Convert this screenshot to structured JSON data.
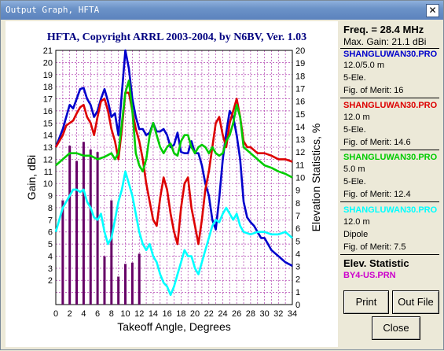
{
  "window": {
    "title": "Output Graph, HFTA",
    "close_glyph": "✕"
  },
  "chart_data": {
    "type": "line",
    "title": "HFTA, Copyright ARRL 2003-2004, by N6BV, Ver. 1.03",
    "xlabel": "Takeoff Angle, Degrees",
    "ylabel": "Gain, dBi",
    "y2label": "Elevation Statistics, %",
    "xlim": [
      0,
      34
    ],
    "ylim": [
      0,
      21
    ],
    "y2lim": [
      0,
      20
    ],
    "grid": true,
    "xticks": [
      0,
      2,
      4,
      6,
      8,
      10,
      12,
      14,
      16,
      18,
      20,
      22,
      24,
      26,
      28,
      30,
      32,
      34
    ],
    "yticks": [
      2,
      3,
      4,
      5,
      6,
      7,
      8,
      9,
      10,
      11,
      12,
      13,
      14,
      15,
      16,
      17,
      18,
      19,
      20,
      21
    ],
    "y2ticks": [
      0,
      1,
      2,
      3,
      4,
      5,
      6,
      7,
      8,
      9,
      10,
      11,
      12,
      13,
      14,
      15,
      16,
      17,
      18,
      19,
      20
    ],
    "series": [
      {
        "name": "SHANGLUWAN30.PRO",
        "color": "#0000cc",
        "x": [
          0,
          1,
          1.5,
          2,
          2.5,
          3,
          3.5,
          4,
          4.5,
          5,
          5.5,
          6,
          6.5,
          7,
          7.5,
          8,
          8.5,
          9,
          9.5,
          10,
          10.5,
          11,
          11.5,
          12,
          12.5,
          13,
          13.5,
          14,
          14.5,
          15,
          15.5,
          16,
          16.5,
          17,
          17.5,
          18,
          18.5,
          19,
          19.5,
          20,
          20.5,
          21,
          21.5,
          22,
          22.5,
          23,
          23.5,
          24,
          24.5,
          25,
          25.5,
          26,
          26.5,
          27,
          27.5,
          28,
          28.5,
          29,
          29.5,
          30,
          31,
          32,
          33,
          34
        ],
        "y": [
          13,
          14.5,
          15.5,
          16.5,
          16.2,
          17,
          17.8,
          17.9,
          17,
          16.5,
          15.5,
          16,
          17,
          17.8,
          16.8,
          15.5,
          15.8,
          14,
          17.5,
          21,
          19.5,
          17,
          15.5,
          14.5,
          14.5,
          14,
          14.2,
          15,
          14.3,
          14.3,
          14.5,
          14,
          13,
          13.2,
          14.2,
          12.6,
          12.5,
          12.5,
          13.5,
          12.5,
          12.5,
          11.5,
          10,
          9,
          7,
          6.2,
          8.8,
          12,
          14.2,
          16,
          15.5,
          14,
          12,
          8.5,
          7.2,
          6.8,
          6.5,
          6,
          5.5,
          5.5,
          4.5,
          4,
          3.5,
          3.2
        ]
      },
      {
        "name": "SHANGLUWAN30.PRO",
        "color": "#dd0000",
        "x": [
          0,
          1,
          1.5,
          2,
          2.5,
          3,
          3.5,
          4,
          4.5,
          5,
          5.5,
          6,
          6.5,
          7,
          7.5,
          8,
          8.5,
          9,
          9.5,
          10,
          10.5,
          11,
          11.5,
          12,
          12.5,
          13,
          13.5,
          14,
          14.5,
          15,
          15.5,
          16,
          16.5,
          17,
          17.5,
          18,
          18.5,
          19,
          19.5,
          20,
          20.5,
          21,
          21.5,
          22,
          22.5,
          23,
          23.5,
          24,
          24.5,
          25,
          25.5,
          26,
          26.5,
          27,
          27.5,
          28,
          29,
          30,
          31,
          32,
          33,
          34
        ],
        "y": [
          13,
          14,
          14.8,
          15,
          15.2,
          15.8,
          16.3,
          16.5,
          15.5,
          15,
          14,
          15.5,
          16.8,
          17,
          16,
          14.5,
          13.5,
          12,
          14.5,
          17.5,
          17.5,
          16,
          14.5,
          13.5,
          12,
          10,
          8.5,
          7,
          6.5,
          8.8,
          10.5,
          9.5,
          7.5,
          6,
          5,
          8,
          10,
          10.5,
          8,
          6.5,
          5,
          7,
          9.5,
          11,
          13,
          15,
          15.5,
          14,
          13,
          15,
          16,
          17,
          15.5,
          13.5,
          13,
          13,
          12.5,
          12.5,
          12.3,
          12,
          12,
          11.8
        ]
      },
      {
        "name": "SHANGLUWAN30.PRO",
        "color": "#00cc00",
        "x": [
          0,
          1,
          2,
          3,
          4,
          5,
          6,
          7,
          8,
          8.5,
          9,
          9.5,
          10,
          10.5,
          11,
          11.5,
          12,
          12.5,
          13,
          13.5,
          14,
          14.5,
          15,
          15.5,
          16,
          16.5,
          17,
          17.5,
          18,
          18.5,
          19,
          19.5,
          20,
          20.5,
          21,
          21.5,
          22,
          22.5,
          23,
          23.5,
          24,
          24.5,
          25,
          25.5,
          26,
          26.5,
          27,
          28,
          29,
          30,
          31,
          32,
          33,
          34
        ],
        "y": [
          11.5,
          12,
          12.5,
          12.5,
          12.3,
          12.3,
          12,
          12.2,
          12.5,
          12,
          12.5,
          15,
          17.5,
          18.5,
          16,
          12.5,
          11.5,
          11,
          12,
          14,
          15,
          14,
          13,
          12.5,
          13,
          13.3,
          12.5,
          12.3,
          13.5,
          14,
          14,
          13,
          12.5,
          13,
          13.2,
          13,
          12.5,
          13,
          12.5,
          12.3,
          12.5,
          13.5,
          14,
          15,
          16.5,
          15.5,
          13,
          12.5,
          12,
          11.5,
          11.3,
          11,
          10.8,
          10.5
        ]
      },
      {
        "name": "SHANGLUWAN30.PRO",
        "color": "#00ffff",
        "x": [
          0,
          0.5,
          1,
          1.5,
          2,
          2.5,
          3,
          3.5,
          4,
          4.5,
          5,
          5.5,
          6,
          6.5,
          7,
          7.5,
          8,
          8.5,
          9,
          9.5,
          10,
          10.5,
          11,
          11.5,
          12,
          12.5,
          13,
          13.5,
          14,
          14.5,
          15,
          15.5,
          16,
          16.5,
          17,
          17.5,
          18,
          18.5,
          19,
          19.5,
          20,
          20.5,
          21,
          21.5,
          22,
          22.5,
          23,
          23.5,
          24,
          24.5,
          25,
          25.5,
          26,
          26.5,
          27,
          28,
          29,
          30,
          31,
          32,
          33,
          34
        ],
        "y": [
          6,
          7,
          8,
          8.5,
          9,
          9.5,
          9.5,
          9.3,
          9.5,
          8.5,
          8,
          7.2,
          7,
          7.5,
          6,
          5,
          5.5,
          7,
          8.5,
          9.5,
          11,
          10,
          9,
          7.5,
          6,
          5,
          4.5,
          5,
          4,
          3.5,
          2.5,
          1.8,
          1.5,
          0.8,
          1.5,
          2.5,
          3.5,
          4.5,
          4,
          4,
          3,
          2.5,
          3.5,
          4.5,
          5.5,
          6.5,
          7,
          6.8,
          7.5,
          8,
          7.5,
          7,
          7.5,
          6.5,
          6,
          5.8,
          6,
          6,
          5.8,
          5.8,
          6,
          5.5
        ]
      }
    ],
    "elevation_bars": {
      "name": "BY4-US.PRN",
      "color": "#660066",
      "x": [
        1,
        2,
        3,
        4,
        5,
        6,
        7,
        8,
        9,
        10,
        11,
        12
      ],
      "values": [
        8.2,
        12.5,
        11.3,
        12.8,
        12.2,
        12,
        3.8,
        8.2,
        2.2,
        3.2,
        3.3,
        4
      ]
    }
  },
  "side": {
    "freq": "Freq. = 28.4 MHz",
    "max_gain": "Max. Gain: 21.1 dBi",
    "blocks": [
      {
        "name": "SHANGLUWAN30.PRO",
        "color": "#0000cc",
        "l1": "12.0/5.0 m",
        "l2": "5-Ele.",
        "l3": "Fig. of Merit:  16"
      },
      {
        "name": "SHANGLUWAN30.PRO",
        "color": "#dd0000",
        "l1": "12.0 m",
        "l2": "5-Ele.",
        "l3": "Fig. of Merit:  14.6"
      },
      {
        "name": "SHANGLUWAN30.PRO",
        "color": "#00cc00",
        "l1": "5.0 m",
        "l2": "5-Ele.",
        "l3": "Fig. of Merit:  12.4"
      },
      {
        "name": "SHANGLUWAN30.PRO",
        "color": "#00ffff",
        "l1": "12.0 m",
        "l2": "Dipole",
        "l3": "Fig. of Merit:  7.5"
      }
    ],
    "elev_title": "Elev. Statistic",
    "elev_file": "BY4-US.PRN",
    "elev_color": "#cc00cc"
  },
  "buttons": {
    "print": "Print",
    "outfile": "Out File",
    "close": "Close"
  }
}
